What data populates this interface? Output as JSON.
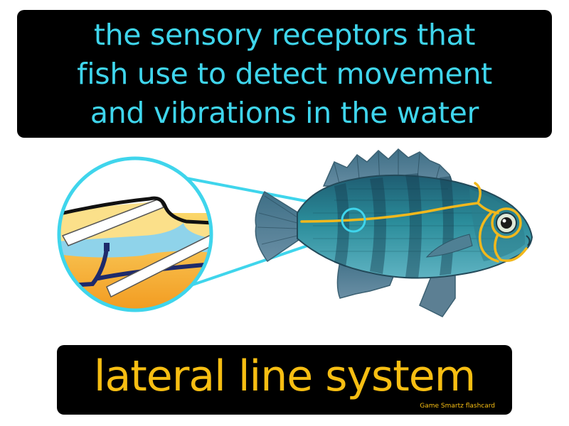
{
  "definition": {
    "lines": [
      "the sensory receptors that",
      "fish use to detect movement",
      "and vibrations in the water"
    ],
    "text_color": "#3fd5ec"
  },
  "term": {
    "text": "lateral line system",
    "text_color": "#f7be12"
  },
  "credit": "Game Smartz flashcard",
  "illustration": {
    "subject": "fish-with-lateral-line",
    "inset": "lateral-line-cross-section",
    "lateral_line_color": "#f2b81c",
    "highlight_color": "#3fd5ec"
  }
}
